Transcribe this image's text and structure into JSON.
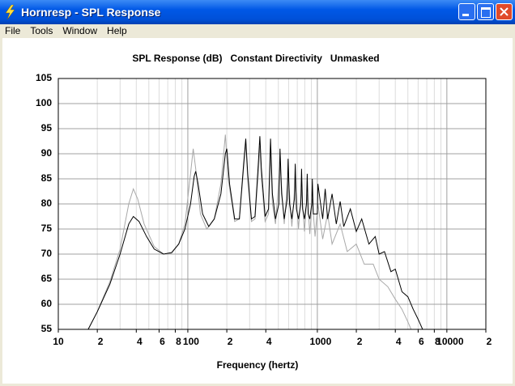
{
  "window": {
    "title": "Hornresp - SPL Response",
    "menu": [
      "File",
      "Tools",
      "Window",
      "Help"
    ]
  },
  "chart_data": {
    "type": "line",
    "title": "SPL Response (dB)   Constant Directivity   Unmasked",
    "x_label": "Frequency (hertz)",
    "xscale": "log",
    "xlim": [
      10,
      20000
    ],
    "ylim": [
      55,
      105
    ],
    "xticks": [
      10,
      {
        "value": 20,
        "label": "2"
      },
      {
        "value": 40,
        "label": "4"
      },
      {
        "value": 60,
        "label": "6"
      },
      {
        "value": 80,
        "label": "8"
      },
      100,
      {
        "value": 200,
        "label": "2"
      },
      {
        "value": 400,
        "label": "4"
      },
      1000,
      {
        "value": 2000,
        "label": "2"
      },
      {
        "value": 4000,
        "label": "4"
      },
      {
        "value": 6000,
        "label": "6"
      },
      {
        "value": 8000,
        "label": "8"
      },
      10000,
      {
        "value": 20000,
        "label": "2"
      }
    ],
    "xgrid": [
      20,
      30,
      40,
      50,
      60,
      70,
      80,
      90,
      100,
      200,
      300,
      400,
      500,
      600,
      700,
      800,
      900,
      1000,
      2000,
      3000,
      4000,
      5000,
      6000,
      7000,
      8000,
      9000,
      10000
    ],
    "yticks": [
      55,
      60,
      65,
      70,
      75,
      80,
      85,
      90,
      95,
      100,
      105
    ],
    "grid": true,
    "series": [
      {
        "color": "#a8a8a8",
        "x": [
          17,
          20,
          25,
          30,
          35,
          38,
          41,
          46,
          55,
          65,
          75,
          85,
          95,
          105,
          110,
          115,
          125,
          140,
          160,
          180,
          195,
          205,
          230,
          250,
          270,
          280,
          290,
          310,
          330,
          350,
          360,
          370,
          395,
          420,
          435,
          450,
          475,
          515,
          555,
          595,
          635,
          675,
          715,
          755,
          795,
          835,
          875,
          915,
          960,
          1010,
          1100,
          1200,
          1300,
          1500,
          1700,
          2000,
          2300,
          2700,
          3000,
          3500,
          4000,
          4500,
          5000,
          5300
        ],
        "values": [
          55,
          58.5,
          64.5,
          71,
          80,
          83,
          81,
          76,
          71.5,
          70,
          70.2,
          72,
          76,
          86,
          91,
          87,
          78,
          75,
          77,
          84,
          93.8,
          85,
          76.5,
          77,
          87,
          92,
          85,
          76.5,
          77,
          86,
          91.5,
          85,
          76.5,
          78,
          90,
          80,
          76,
          88,
          76,
          86,
          75.5,
          84.5,
          75,
          83,
          74.5,
          82,
          74,
          81,
          73.5,
          80,
          73,
          78,
          72,
          76,
          70.5,
          72,
          68,
          68,
          65,
          63.5,
          61,
          59,
          56.5,
          55
        ]
      },
      {
        "color": "#000000",
        "x": [
          17,
          20,
          25,
          30,
          35,
          38,
          42,
          48,
          55,
          65,
          75,
          85,
          95,
          105,
          112,
          115,
          120,
          130,
          145,
          160,
          180,
          195,
          200,
          210,
          230,
          250,
          270,
          280,
          290,
          310,
          330,
          350,
          360,
          370,
          395,
          420,
          435,
          450,
          475,
          505,
          515,
          530,
          555,
          585,
          595,
          610,
          635,
          665,
          675,
          690,
          715,
          745,
          755,
          770,
          795,
          825,
          835,
          850,
          875,
          905,
          915,
          930,
          1000,
          1010,
          1100,
          1150,
          1200,
          1300,
          1400,
          1500,
          1600,
          1800,
          2000,
          2200,
          2500,
          2800,
          3000,
          3300,
          3700,
          4000,
          4500,
          5000,
          5500,
          6000,
          6500
        ],
        "values": [
          55,
          58.5,
          64,
          70,
          76,
          77.5,
          76.5,
          73.5,
          71,
          70,
          70.3,
          72,
          75,
          80,
          85.5,
          86.5,
          84,
          78,
          75.5,
          77,
          82,
          90,
          91,
          84,
          77,
          77,
          88,
          93,
          86,
          77,
          77.5,
          88,
          93.5,
          87,
          77.5,
          79,
          93,
          82,
          77,
          80,
          91,
          82,
          77,
          81,
          89,
          80,
          77,
          81,
          88,
          79,
          77,
          80,
          87,
          79,
          77,
          80,
          86,
          78,
          77,
          80,
          85,
          78,
          78,
          84,
          77,
          83,
          77,
          82,
          76,
          80.5,
          75.5,
          79,
          74.5,
          77,
          72,
          73.5,
          70,
          70.5,
          66.5,
          67,
          62.5,
          61.5,
          59,
          57,
          55
        ]
      }
    ]
  }
}
